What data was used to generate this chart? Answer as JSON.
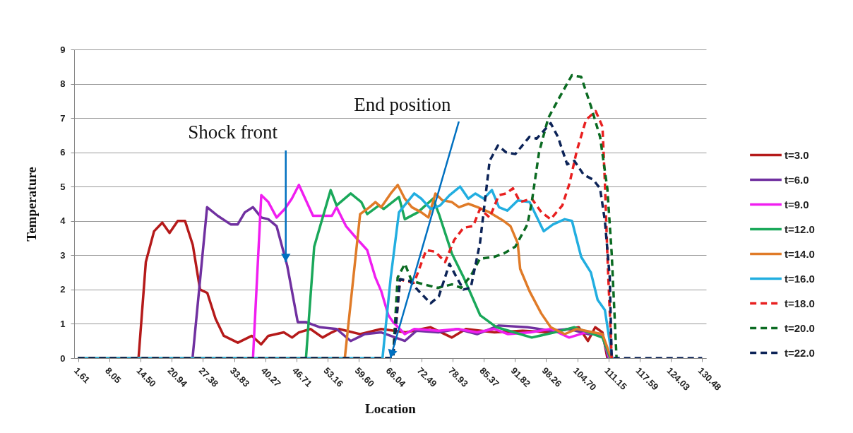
{
  "chart_data": {
    "type": "line",
    "xlabel": "Location",
    "ylabel": "Temperature",
    "xlim": [
      0.8,
      131.3
    ],
    "ylim": [
      0,
      9
    ],
    "xticks": [
      1.61,
      8.05,
      {
        "value": 14.5,
        "label": "14.50"
      },
      20.94,
      27.38,
      33.83,
      40.27,
      46.71,
      53.16,
      {
        "value": 59.6,
        "label": "59.60"
      },
      66.04,
      72.49,
      78.93,
      85.37,
      91.82,
      98.26,
      {
        "value": 104.7,
        "label": "104.70"
      },
      111.15,
      117.59,
      124.03,
      130.48
    ],
    "yticks": [
      0,
      1,
      2,
      3,
      4,
      5,
      6,
      7,
      8,
      9
    ],
    "grid": "y",
    "legend": "right",
    "marker": "none",
    "annotations": [
      {
        "text": "Shock front",
        "x": 44.5,
        "y": 2.8
      },
      {
        "text": "End position",
        "x": 66.1,
        "y": 0
      }
    ],
    "series": [
      {
        "name": "t=3.0",
        "color": "#b51a1a",
        "line_style": "solid",
        "x": [
          1.61,
          14.1,
          15.6,
          17.3,
          19.0,
          20.5,
          22.2,
          23.7,
          25.3,
          26.8,
          28.3,
          30.0,
          31.7,
          34.6,
          37.5,
          39.4,
          40.9,
          44.1,
          45.8,
          47.2,
          49.6,
          52.1,
          54.0,
          55.5,
          59.9,
          64.2,
          69.3,
          74.4,
          78.8,
          81.7,
          87.6,
          93.4,
          99.2,
          105.0,
          106.9,
          108.4,
          109.9,
          110.9
        ],
        "values": [
          0,
          0,
          2.8,
          3.7,
          3.95,
          3.65,
          4.0,
          4.0,
          3.3,
          2.0,
          1.9,
          1.15,
          0.65,
          0.45,
          0.65,
          0.4,
          0.65,
          0.75,
          0.6,
          0.75,
          0.85,
          0.6,
          0.75,
          0.85,
          0.7,
          0.85,
          0.75,
          0.9,
          0.6,
          0.85,
          0.75,
          0.8,
          0.75,
          0.9,
          0.5,
          0.9,
          0.75,
          0
        ]
      },
      {
        "name": "t=6.0",
        "color": "#7030a0",
        "line_style": "solid",
        "x": [
          1.61,
          25.25,
          28.25,
          30.44,
          33.12,
          34.58,
          36.04,
          37.73,
          39.44,
          40.9,
          42.6,
          44.79,
          46.97,
          48.67,
          51.58,
          54.99,
          57.91,
          60.83,
          64.22,
          69.08,
          71.5,
          76.0,
          80.0,
          84.0,
          88.5,
          94.4,
          99.2,
          103.0,
          107.0,
          109.9,
          111.1
        ],
        "values": [
          0,
          0,
          4.4,
          4.15,
          3.9,
          3.9,
          4.25,
          4.4,
          4.1,
          4.05,
          3.85,
          2.7,
          1.05,
          1.05,
          0.9,
          0.85,
          0.5,
          0.7,
          0.75,
          0.5,
          0.8,
          0.75,
          0.85,
          0.7,
          0.95,
          0.9,
          0.8,
          0.85,
          0.7,
          0.7,
          0
        ]
      },
      {
        "name": "t=9.0",
        "color": "#f01ef0",
        "line_style": "solid",
        "x": [
          1.61,
          37.73,
          39.44,
          40.9,
          42.6,
          44.3,
          45.75,
          47.21,
          50.13,
          54.02,
          54.99,
          56.93,
          59.37,
          61.31,
          63.01,
          64.22,
          65.68,
          66.66,
          69.08,
          71.03,
          76.0,
          80.0,
          84.0,
          87.5,
          90.4,
          95.0,
          99.2,
          103.0,
          106.5,
          109.9,
          111.3
        ],
        "values": [
          0,
          0,
          4.75,
          4.55,
          4.1,
          4.35,
          4.65,
          5.05,
          4.15,
          4.15,
          4.4,
          3.85,
          3.45,
          3.15,
          2.35,
          1.95,
          1.25,
          1.05,
          0.7,
          0.85,
          0.8,
          0.85,
          0.75,
          0.85,
          0.7,
          0.75,
          0.85,
          0.6,
          0.75,
          0.65,
          0
        ]
      },
      {
        "name": "t=12.0",
        "color": "#1aa85a",
        "line_style": "solid",
        "x": [
          1.61,
          48.67,
          50.37,
          53.77,
          54.99,
          57.91,
          60.1,
          61.31,
          63.74,
          64.71,
          67.87,
          69.08,
          71.76,
          74.91,
          76.13,
          78.8,
          81.24,
          84.64,
          88.04,
          92.9,
          95.3,
          100.0,
          104.1,
          109.9,
          111.5
        ],
        "values": [
          0,
          0,
          3.25,
          4.9,
          4.45,
          4.8,
          4.55,
          4.2,
          4.45,
          4.35,
          4.7,
          4.05,
          4.25,
          4.65,
          4.2,
          3.05,
          2.35,
          1.25,
          0.9,
          0.7,
          0.6,
          0.75,
          0.9,
          0.6,
          0
        ]
      },
      {
        "name": "t=14.0",
        "color": "#e07b28",
        "line_style": "solid",
        "x": [
          1.61,
          56.69,
          59.85,
          61.79,
          63.01,
          64.22,
          66.17,
          67.62,
          69.08,
          70.54,
          72.49,
          73.95,
          75.4,
          76.86,
          78.8,
          80.26,
          82.2,
          84.15,
          86.58,
          89.49,
          90.9,
          92.4,
          92.9,
          94.84,
          97.27,
          99.21,
          102.1,
          104.6,
          108.0,
          109.9,
          111.7
        ],
        "values": [
          0,
          0,
          4.2,
          4.4,
          4.55,
          4.4,
          4.8,
          5.05,
          4.65,
          4.4,
          4.25,
          4.1,
          4.8,
          4.6,
          4.55,
          4.4,
          4.5,
          4.4,
          4.25,
          4.0,
          3.85,
          3.35,
          2.6,
          1.95,
          1.3,
          0.9,
          0.7,
          0.85,
          0.75,
          0.7,
          0
        ]
      },
      {
        "name": "t=16.0",
        "color": "#22aee0",
        "line_style": "solid",
        "x": [
          1.61,
          64.47,
          66.17,
          67.87,
          69.57,
          71.03,
          72.49,
          74.43,
          76.37,
          78.32,
          80.51,
          82.2,
          83.66,
          85.37,
          87.07,
          88.53,
          90.23,
          92.41,
          94.84,
          97.76,
          99.7,
          102.1,
          103.6,
          105.5,
          107.5,
          108.9,
          110.4,
          111.9
        ],
        "values": [
          0,
          0,
          2.35,
          4.25,
          4.55,
          4.8,
          4.65,
          4.35,
          4.45,
          4.75,
          5.0,
          4.65,
          4.8,
          4.65,
          4.9,
          4.4,
          4.3,
          4.6,
          4.55,
          3.7,
          3.9,
          4.05,
          4.0,
          2.95,
          2.5,
          1.7,
          1.4,
          0
        ]
      },
      {
        "name": "t=18.0",
        "color": "#e82020",
        "line_style": "dashed",
        "x": [
          1.61,
          66.6,
          68.1,
          69.1,
          71.0,
          73.5,
          75.4,
          77.4,
          79.3,
          81.2,
          83.2,
          84.6,
          86.6,
          88.5,
          90.0,
          91.4,
          92.9,
          95.3,
          97.3,
          99.2,
          101.6,
          103.1,
          104.6,
          106.5,
          108.5,
          109.9,
          110.4,
          110.9,
          111.8
        ],
        "values": [
          0,
          0,
          2.3,
          2.25,
          2.2,
          3.15,
          3.1,
          2.8,
          3.45,
          3.8,
          3.85,
          4.35,
          4.1,
          4.75,
          4.8,
          4.95,
          4.55,
          4.65,
          4.25,
          4.05,
          4.45,
          5.1,
          6.05,
          6.95,
          7.2,
          6.75,
          5.1,
          3.05,
          0
        ]
      },
      {
        "name": "t=20.0",
        "color": "#0b6b22",
        "line_style": "dashed",
        "x": [
          1.61,
          66.66,
          67.6,
          69.1,
          70.5,
          73.0,
          75.9,
          78.8,
          80.7,
          82.7,
          84.6,
          87.5,
          89.5,
          91.9,
          94.4,
          95.3,
          96.8,
          98.7,
          101.2,
          103.6,
          105.5,
          107.5,
          109.4,
          110.9,
          111.8,
          112.8
        ],
        "values": [
          0,
          0,
          2.35,
          2.75,
          2.25,
          2.15,
          2.05,
          2.15,
          2.05,
          2.4,
          2.9,
          2.95,
          3.05,
          3.25,
          3.9,
          4.55,
          6.0,
          7.0,
          7.65,
          8.25,
          8.2,
          7.35,
          6.45,
          4.95,
          3.05,
          0
        ]
      },
      {
        "name": "t=22.0",
        "color": "#0c2357",
        "line_style": "dashed",
        "x": [
          1.61,
          66.66,
          68.1,
          70.1,
          72.0,
          74.4,
          76.1,
          78.3,
          79.8,
          81.2,
          82.7,
          84.6,
          85.6,
          86.6,
          88.3,
          90.0,
          91.9,
          94.8,
          96.3,
          99.2,
          100.7,
          102.6,
          104.1,
          106.0,
          108.0,
          109.4,
          110.4,
          111.4,
          111.8,
          130.48
        ],
        "values": [
          0,
          0,
          2.3,
          2.25,
          1.95,
          1.6,
          1.8,
          2.75,
          2.35,
          2.0,
          2.05,
          3.35,
          4.55,
          5.75,
          6.2,
          6.0,
          5.95,
          6.45,
          6.4,
          6.85,
          6.45,
          5.65,
          5.75,
          5.35,
          5.2,
          4.95,
          4.0,
          2.35,
          0,
          0
        ]
      }
    ]
  }
}
